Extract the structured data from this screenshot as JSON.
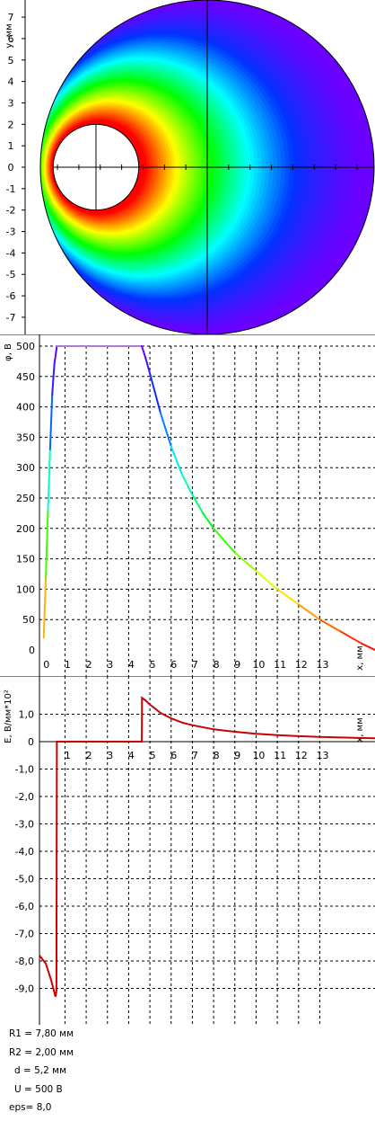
{
  "chart_data": [
    {
      "type": "heatmap",
      "ylabel": "y, мм",
      "ylim": [
        -7.8,
        7.8
      ],
      "y_ticks": [
        "-7",
        "-6",
        "-5",
        "-4",
        "-3",
        "-2",
        "-1",
        "0",
        "1",
        "2",
        "3",
        "4",
        "5",
        "6",
        "7"
      ],
      "outer_radius": 7.8,
      "inner_radius": 2.0,
      "inner_center_x": -5.2,
      "colors": [
        "#6a00ff",
        "#0033ff",
        "#00ffff",
        "#00ff00",
        "#ffff00",
        "#ff0000"
      ]
    },
    {
      "type": "line",
      "xlabel": "x, мм",
      "ylabel": "φ, В",
      "xlim": [
        -0.2,
        15.6
      ],
      "ylim": [
        0,
        500
      ],
      "x_ticks": [
        "0",
        "1",
        "2",
        "3",
        "4",
        "5",
        "6",
        "7",
        "8",
        "9",
        "10",
        "11",
        "12",
        "13"
      ],
      "y_ticks": [
        "0",
        "50",
        "100",
        "150",
        "200",
        "250",
        "300",
        "350",
        "400",
        "450",
        "500"
      ],
      "series": [
        {
          "x": [
            0,
            0.1,
            0.2,
            0.3,
            0.4,
            0.5,
            0.6,
            0.62,
            4.6,
            4.62,
            4.8,
            5.0,
            5.5,
            6.0,
            6.5,
            7.0,
            7.5,
            8.0,
            9.0,
            10.0,
            11.0,
            12.0,
            13.0,
            14.0,
            15.0,
            15.6
          ],
          "y": [
            20,
            120,
            230,
            330,
            420,
            470,
            495,
            500,
            500,
            500,
            480,
            455,
            390,
            335,
            290,
            255,
            225,
            200,
            160,
            130,
            100,
            75,
            50,
            30,
            10,
            0
          ]
        }
      ]
    },
    {
      "type": "line",
      "xlabel": "x, мм",
      "ylabel": "E, В/мм*10²",
      "xlim": [
        -0.2,
        15.6
      ],
      "ylim": [
        -10,
        2
      ],
      "x_ticks": [
        "0",
        "1",
        "2",
        "3",
        "4",
        "5",
        "6",
        "7",
        "8",
        "9",
        "10",
        "11",
        "12",
        "13"
      ],
      "y_ticks": [
        "1,0",
        "0",
        "-1,0",
        "-2,0",
        "-3,0",
        "-4,0",
        "-5,0",
        "-6,0",
        "-7,0",
        "-8,0",
        "-9,0"
      ],
      "series": [
        {
          "x": [
            -0.2,
            0.1,
            0.35,
            0.55,
            0.6,
            0.62,
            0.65,
            4.6,
            4.62,
            4.63,
            4.8,
            5.0,
            5.5,
            6.0,
            6.5,
            7.0,
            8.0,
            9.0,
            10.0,
            11.0,
            12.0,
            13.0,
            14.0,
            15.0,
            15.6
          ],
          "y": [
            -7.8,
            -8.1,
            -8.7,
            -9.3,
            -9.1,
            0,
            0,
            0,
            0,
            1.6,
            1.5,
            1.35,
            1.05,
            0.85,
            0.7,
            0.6,
            0.45,
            0.36,
            0.29,
            0.24,
            0.2,
            0.17,
            0.15,
            0.13,
            0.12
          ]
        }
      ]
    }
  ],
  "params": {
    "r1": "R1 = 7,80 мм",
    "r2": "R2 = 2,00 мм",
    "d": "d = 5,2 мм",
    "u": "U = 500 В",
    "eps": "eps= 8,0"
  }
}
